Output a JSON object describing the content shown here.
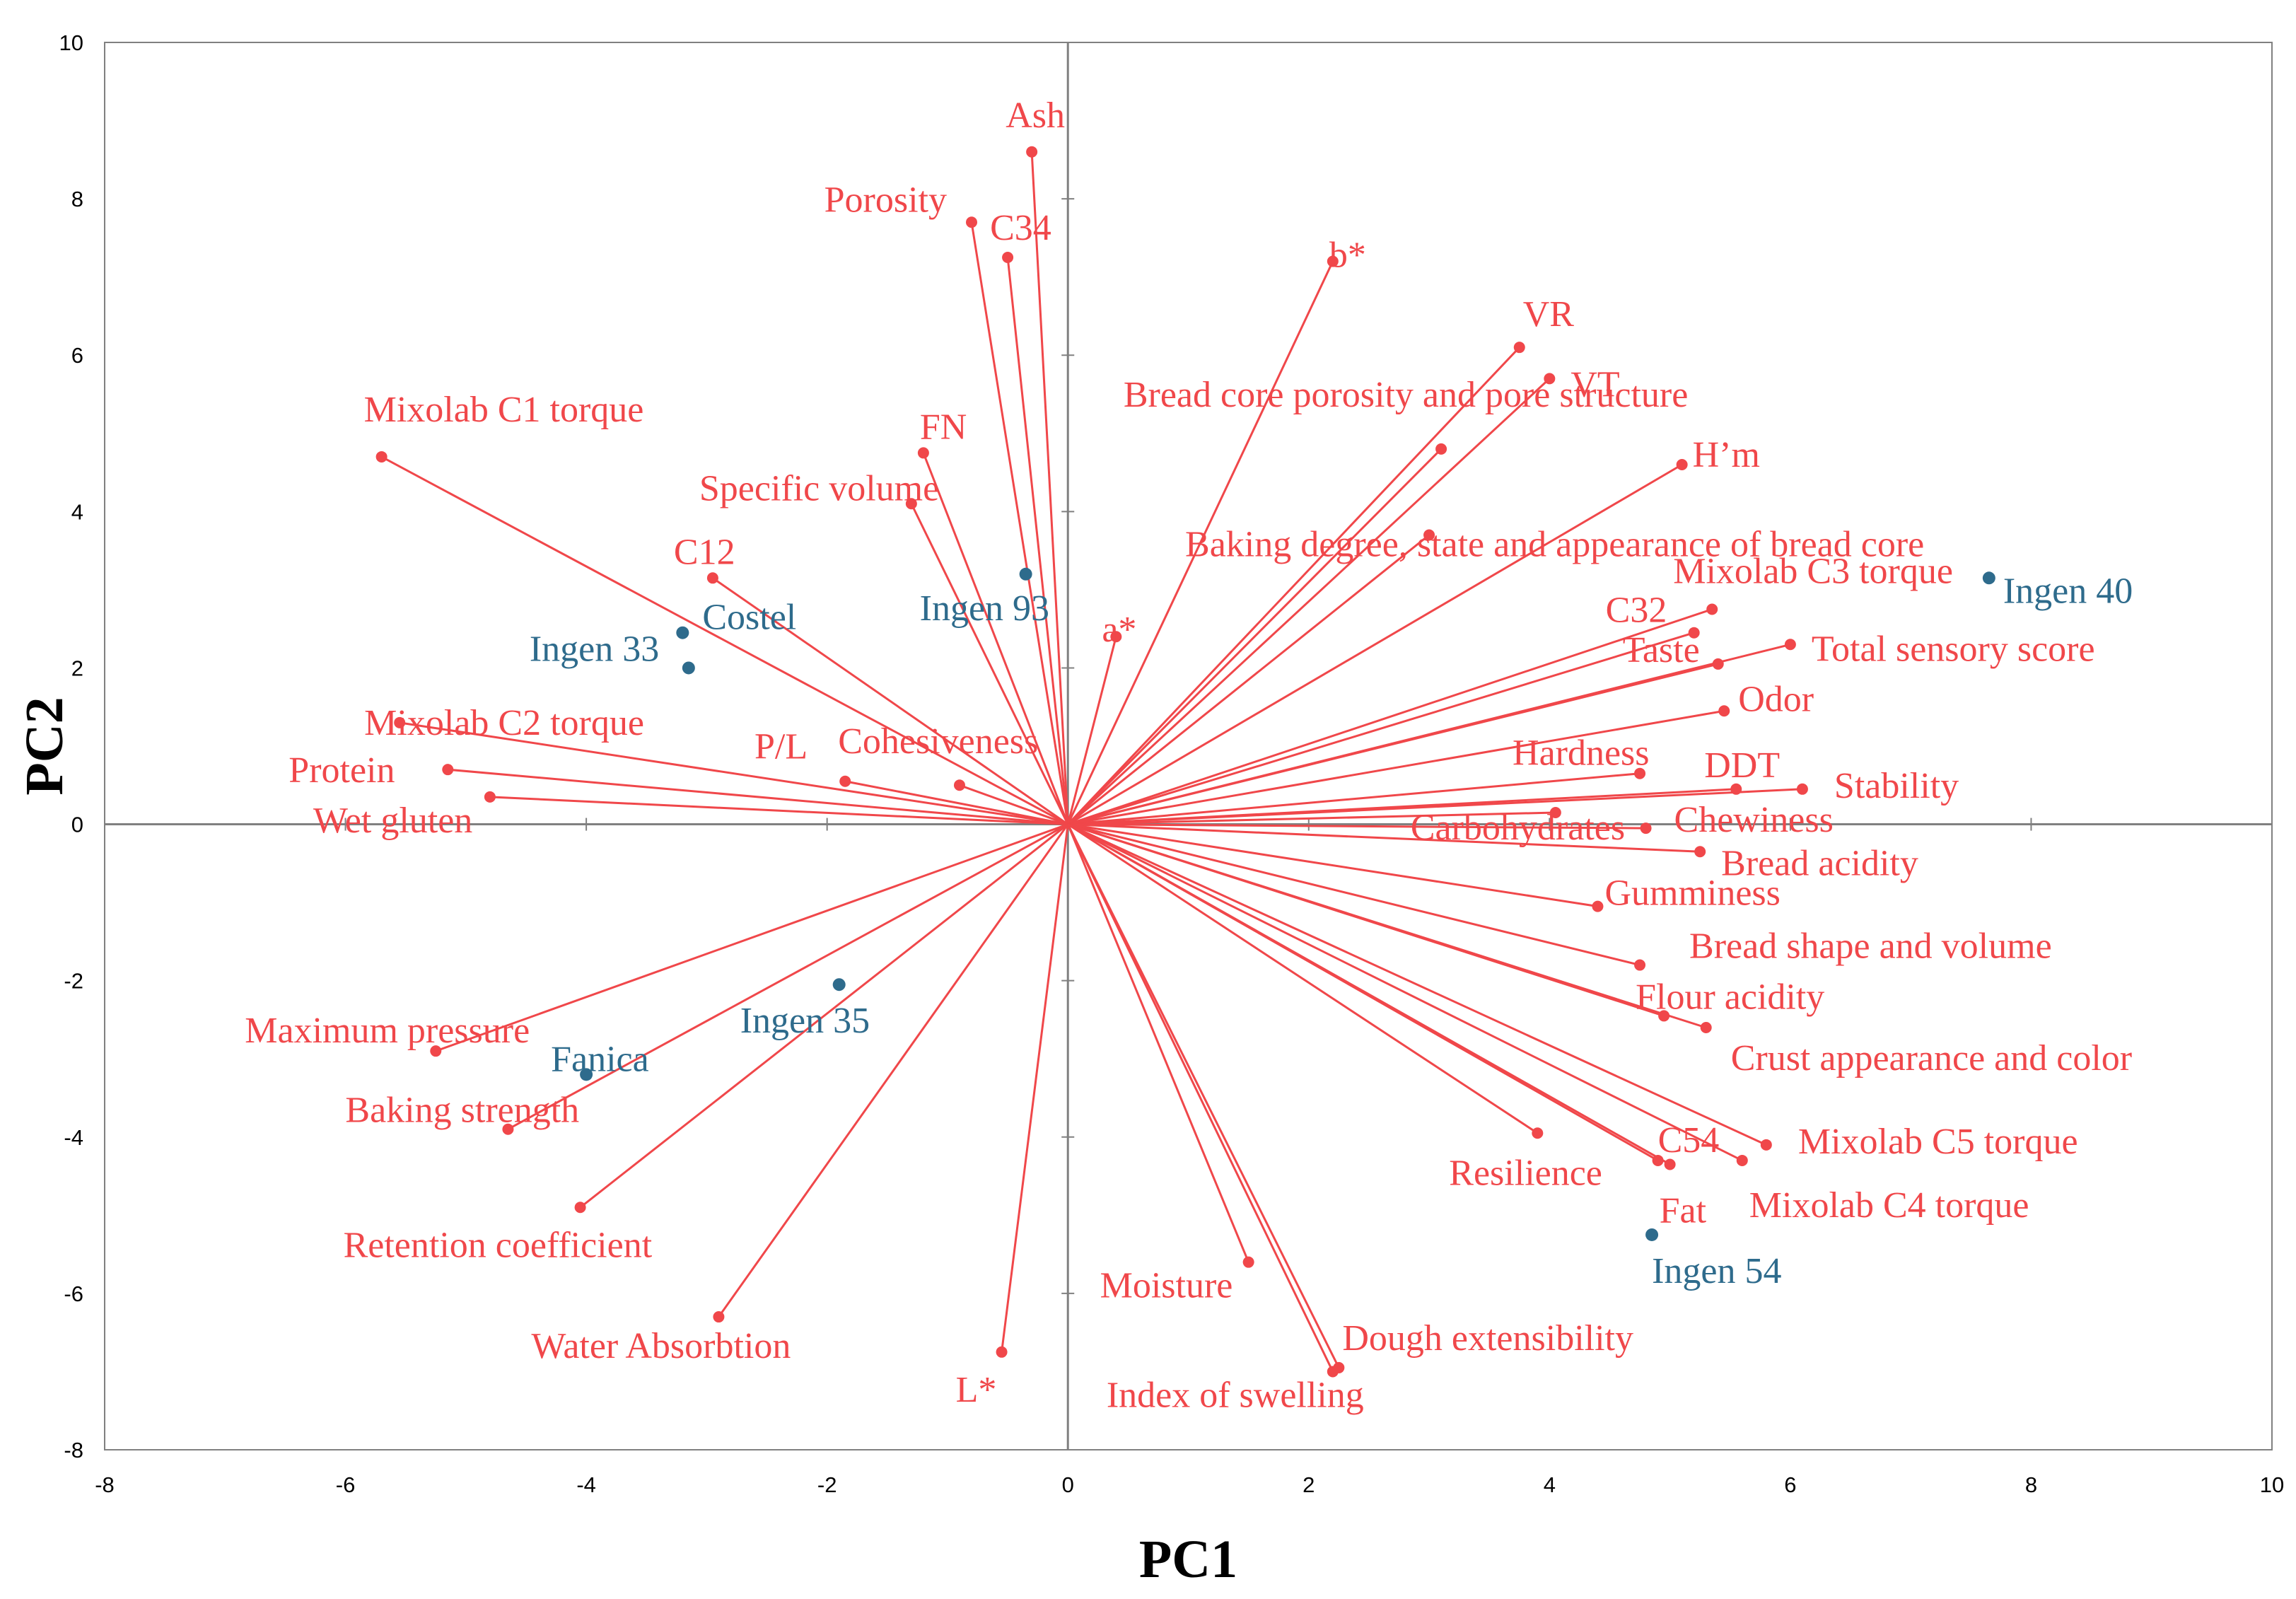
{
  "chart_data": {
    "type": "scatter",
    "subtype": "biplot",
    "xlabel": "PC1",
    "ylabel": "PC2",
    "xlim": [
      -8,
      10
    ],
    "ylim": [
      -8,
      10
    ],
    "xticks": [
      -8,
      -6,
      -4,
      -2,
      0,
      2,
      4,
      6,
      8,
      10
    ],
    "yticks": [
      -8,
      -6,
      -4,
      -2,
      0,
      2,
      4,
      6,
      8,
      10
    ],
    "grid": false,
    "colors": {
      "variables": "#f0474a",
      "samples": "#2e6b8c",
      "axes": "#808080"
    },
    "variables": [
      {
        "label": "Ash",
        "x": -0.3,
        "y": 8.6
      },
      {
        "label": "Porosity",
        "x": -0.8,
        "y": 7.7
      },
      {
        "label": "C34",
        "x": -0.5,
        "y": 7.25
      },
      {
        "label": "b*",
        "x": 2.2,
        "y": 7.2
      },
      {
        "label": "VR",
        "x": 3.75,
        "y": 6.1
      },
      {
        "label": "VT",
        "x": 4.0,
        "y": 5.7
      },
      {
        "label": "Bread core porosity and pore structure",
        "x": 3.1,
        "y": 4.8
      },
      {
        "label": "Mixolab C1 torque",
        "x": -5.7,
        "y": 4.7
      },
      {
        "label": "FN",
        "x": -1.2,
        "y": 4.75
      },
      {
        "label": "H’m",
        "x": 5.1,
        "y": 4.6
      },
      {
        "label": "Specific volume",
        "x": -1.3,
        "y": 4.1
      },
      {
        "label": "Baking degree, state and appearance of bread core",
        "x": 3.0,
        "y": 3.7
      },
      {
        "label": "C12",
        "x": -2.95,
        "y": 3.15
      },
      {
        "label": "Mixolab C3 torque",
        "x": 5.35,
        "y": 2.75
      },
      {
        "label": "C32",
        "x": 5.2,
        "y": 2.45
      },
      {
        "label": "a*",
        "x": 0.4,
        "y": 2.4
      },
      {
        "label": "Total sensory score",
        "x": 6.0,
        "y": 2.3
      },
      {
        "label": "Taste",
        "x": 5.4,
        "y": 2.05
      },
      {
        "label": "Odor",
        "x": 5.45,
        "y": 1.45
      },
      {
        "label": "Mixolab C2 torque",
        "x": -5.55,
        "y": 1.3
      },
      {
        "label": "Protein",
        "x": -5.15,
        "y": 0.7
      },
      {
        "label": "Hardness",
        "x": 4.75,
        "y": 0.65
      },
      {
        "label": "DDT",
        "x": 5.55,
        "y": 0.45
      },
      {
        "label": "Stability",
        "x": 6.1,
        "y": 0.45
      },
      {
        "label": "Cohesiveness",
        "x": -1.85,
        "y": 0.55
      },
      {
        "label": "P/L",
        "x": -0.9,
        "y": 0.5
      },
      {
        "label": "Wet gluten",
        "x": -4.8,
        "y": 0.35
      },
      {
        "label": "Carbohydrates",
        "x": 4.05,
        "y": 0.15
      },
      {
        "label": "Chewiness",
        "x": 4.8,
        "y": -0.05
      },
      {
        "label": "Bread acidity",
        "x": 5.25,
        "y": -0.35
      },
      {
        "label": "Gumminess",
        "x": 4.4,
        "y": -1.05
      },
      {
        "label": "Bread shape and volume",
        "x": 4.75,
        "y": -1.8
      },
      {
        "label": "Flour acidity",
        "x": 4.95,
        "y": -2.45
      },
      {
        "label": "Crust appearance and color",
        "x": 5.3,
        "y": -2.6
      },
      {
        "label": "Maximum pressure",
        "x": -5.25,
        "y": -2.9
      },
      {
        "label": "Baking strength",
        "x": -4.65,
        "y": -3.9
      },
      {
        "label": "Resilience",
        "x": 3.9,
        "y": -3.95
      },
      {
        "label": "Mixolab C5 torque",
        "x": 5.8,
        "y": -4.1
      },
      {
        "label": "C54",
        "x": 4.9,
        "y": -4.3
      },
      {
        "label": "Mixolab C4 torque",
        "x": 5.6,
        "y": -4.3
      },
      {
        "label": "Retention coefficient",
        "x": -4.05,
        "y": -4.9
      },
      {
        "label": "Moisture",
        "x": 1.5,
        "y": -5.6
      },
      {
        "label": "Water Absorbtion",
        "x": -2.9,
        "y": -6.3
      },
      {
        "label": "L*",
        "x": -0.55,
        "y": -6.75
      },
      {
        "label": "Dough extensibility",
        "x": 2.25,
        "y": -6.95
      },
      {
        "label": "Index of swelling",
        "x": 2.2,
        "y": -7.0
      },
      {
        "label": "Fat",
        "x": 5.0,
        "y": -4.35
      }
    ],
    "samples": [
      {
        "label": "Ingen 40",
        "x": 7.65,
        "y": 3.15
      },
      {
        "label": "Ingen 93",
        "x": -0.35,
        "y": 3.2
      },
      {
        "label": "Costel",
        "x": -3.2,
        "y": 2.45
      },
      {
        "label": "Ingen 33",
        "x": -3.15,
        "y": 2.0
      },
      {
        "label": "Ingen 35",
        "x": -1.9,
        "y": -2.05
      },
      {
        "label": "Fanica",
        "x": -4.0,
        "y": -3.2
      },
      {
        "label": "Ingen 54",
        "x": 4.85,
        "y": -5.25
      }
    ]
  }
}
